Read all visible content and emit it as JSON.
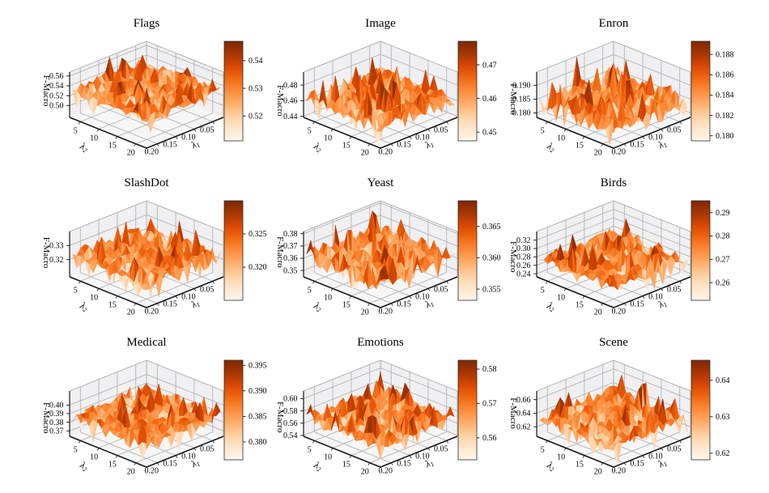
{
  "figure": {
    "background": "#ffffff"
  },
  "shared_axes": {
    "zlabel": "F-Macro",
    "xlabel": {
      "symbol": "λ",
      "subscript": "1"
    },
    "ylabel": {
      "symbol": "λ",
      "subscript": "2"
    },
    "x_ticks": [
      "0.20",
      "0.15",
      "0.10",
      "0.05"
    ],
    "y_ticks": [
      "5",
      "10",
      "15",
      "20"
    ]
  },
  "style": {
    "colormap": "Oranges",
    "colormap_stops": [
      [
        0.0,
        "#fff5eb"
      ],
      [
        0.125,
        "#fee6ce"
      ],
      [
        0.25,
        "#fdd0a2"
      ],
      [
        0.375,
        "#fdae6b"
      ],
      [
        0.5,
        "#fd8d3c"
      ],
      [
        0.625,
        "#f16913"
      ],
      [
        0.75,
        "#d94801"
      ],
      [
        0.875,
        "#a63603"
      ],
      [
        1.0,
        "#7f2704"
      ]
    ],
    "grid_color": "#b4b4b4",
    "pane_edge_color": "#a8a8a8",
    "pane_wall_color": "#f0f0f2",
    "pane_floor_color": "#f6f6f7",
    "axis_line_color": "#141414",
    "text_color": "#000000"
  },
  "chart_data": [
    {
      "title": "Flags",
      "type": "surface3d",
      "zlabel": "F-Macro",
      "z_ticks": [
        "0.50",
        "0.52",
        "0.54",
        "0.56"
      ],
      "z_range": [
        0.476,
        0.568
      ],
      "colorbar_ticks": [
        "0.52",
        "0.53",
        "0.54"
      ],
      "colorbar_range": [
        0.511,
        0.547
      ]
    },
    {
      "title": "Image",
      "type": "surface3d",
      "zlabel": "F-Macro",
      "z_ticks": [
        "0.44",
        "0.46",
        "0.48"
      ],
      "z_range": [
        0.4387,
        0.4967
      ],
      "colorbar_ticks": [
        "0.45",
        "0.46",
        "0.47"
      ],
      "colorbar_range": [
        0.4474,
        0.477
      ]
    },
    {
      "title": "Enron",
      "type": "surface3d",
      "zlabel": "F-Macro",
      "z_ticks": [
        "0.180",
        "0.185",
        "0.190"
      ],
      "z_range": [
        0.1784,
        0.1948
      ],
      "colorbar_ticks": [
        "0.180",
        "0.182",
        "0.184",
        "0.186",
        "0.188"
      ],
      "colorbar_range": [
        0.1795,
        0.1893
      ]
    },
    {
      "title": "SlashDot",
      "type": "surface3d",
      "zlabel": "F-Macro",
      "z_ticks": [
        "0.32",
        "0.33"
      ],
      "z_range": [
        0.3077,
        0.34
      ],
      "colorbar_ticks": [
        "0.320",
        "0.325"
      ],
      "colorbar_range": [
        0.315,
        0.33
      ]
    },
    {
      "title": "Yeast",
      "type": "surface3d",
      "zlabel": "F-Macro",
      "z_ticks": [
        "0.35",
        "0.36",
        "0.37",
        "0.38"
      ],
      "z_range": [
        0.3448,
        0.3818
      ],
      "colorbar_ticks": [
        "0.355",
        "0.360",
        "0.365"
      ],
      "colorbar_range": [
        0.3532,
        0.3691
      ]
    },
    {
      "title": "Birds",
      "type": "surface3d",
      "zlabel": "F-Macro",
      "z_ticks": [
        "0.24",
        "0.26",
        "0.28",
        "0.30",
        "0.32"
      ],
      "z_range": [
        0.2324,
        0.3405
      ],
      "colorbar_ticks": [
        "0.26",
        "0.27",
        "0.28",
        "0.29"
      ],
      "colorbar_range": [
        0.2524,
        0.2951
      ]
    },
    {
      "title": "Medical",
      "type": "surface3d",
      "zlabel": "F-Macro",
      "z_ticks": [
        "0.37",
        "0.38",
        "0.39",
        "0.40"
      ],
      "z_range": [
        0.3637,
        0.4163
      ],
      "colorbar_ticks": [
        "0.380",
        "0.385",
        "0.390",
        "0.395"
      ],
      "colorbar_range": [
        0.3765,
        0.396
      ]
    },
    {
      "title": "Emotions",
      "type": "surface3d",
      "zlabel": "F-Macro",
      "z_ticks": [
        "0.54",
        "0.56",
        "0.58",
        "0.60"
      ],
      "z_range": [
        0.5385,
        0.6126
      ],
      "colorbar_ticks": [
        "0.56",
        "0.57",
        "0.58"
      ],
      "colorbar_range": [
        0.5536,
        0.5826
      ]
    },
    {
      "title": "Scene",
      "type": "surface3d",
      "zlabel": "F-Macro",
      "z_ticks": [
        "0.62",
        "0.64",
        "0.66"
      ],
      "z_range": [
        0.606,
        0.6727
      ],
      "colorbar_ticks": [
        "0.62",
        "0.63",
        "0.64"
      ],
      "colorbar_range": [
        0.6182,
        0.6455
      ]
    }
  ]
}
